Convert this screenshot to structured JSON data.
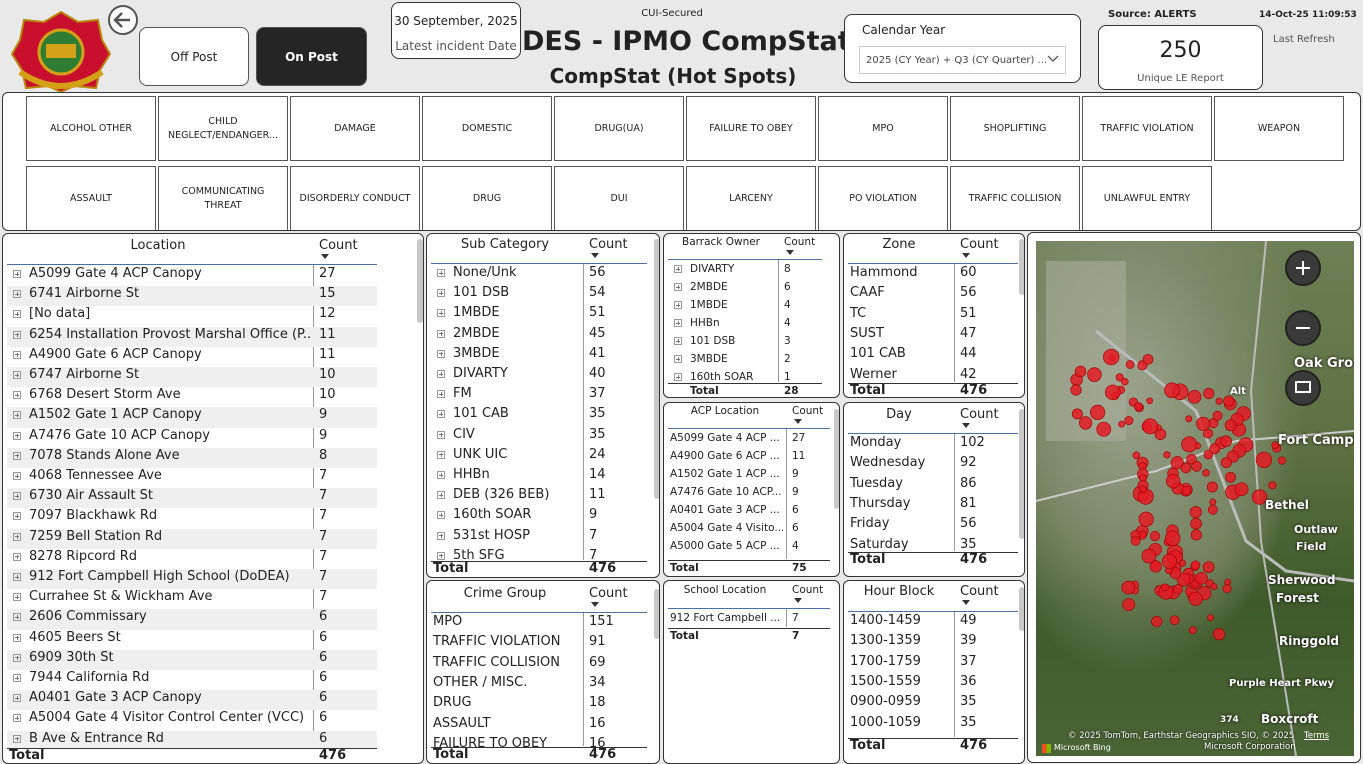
{
  "header": {
    "classification": "CUI-Secured",
    "title": "DES - IPMO CompStat",
    "subtitle": "CompStat (Hot Spots)",
    "latest_date": "30 September, 2025",
    "latest_date_label": "Latest incident Date",
    "filter_label": "Calendar Year",
    "filter_value": "2025 (CY Year) + Q3 (CY Quarter) ...",
    "source": "Source: ALERTS",
    "timestamp": "14-Oct-25 11:09:53",
    "last_refresh": "Last Refresh",
    "card_value": "250",
    "card_label": "Unique LE Report"
  },
  "buttons": [
    "Off Post",
    "On Post"
  ],
  "incident_types": [
    [
      "ALCOHOL OTHER",
      "CHILD NEGLECT/ENDANGER...",
      "DAMAGE",
      "DOMESTIC",
      "DRUG(UA)",
      "FAILURE TO OBEY",
      "MPO",
      "SHOPLIFTING",
      "TRAFFIC VIOLATION",
      "WEAPON"
    ],
    [
      "ASSAULT",
      "COMMUNICATING THREAT",
      "DISORDERLY CONDUCT",
      "DRUG",
      "DUI",
      "LARCENY",
      "PO VIOLATION",
      "TRAFFIC COLLISION",
      "UNLAWFUL ENTRY"
    ]
  ],
  "tables": {
    "location": {
      "columns": [
        "Location",
        "Count"
      ],
      "rows": [
        [
          "A5099 Gate 4 ACP Canopy",
          27
        ],
        [
          "6741 Airborne St",
          15
        ],
        [
          "[No data]",
          12
        ],
        [
          "6254 Installation Provost Marshal Office (P...",
          11
        ],
        [
          "A4900 Gate 6 ACP Canopy",
          11
        ],
        [
          "6747 Airborne St",
          10
        ],
        [
          "6768 Desert Storm Ave",
          10
        ],
        [
          "A1502 Gate 1 ACP Canopy",
          9
        ],
        [
          "A7476 Gate 10 ACP Canopy",
          9
        ],
        [
          "7078 Stands Alone Ave",
          8
        ],
        [
          "4068 Tennessee Ave",
          7
        ],
        [
          "6730 Air Assault St",
          7
        ],
        [
          "7097 Blackhawk Rd",
          7
        ],
        [
          "7259 Bell Station Rd",
          7
        ],
        [
          "8278 Ripcord Rd",
          7
        ],
        [
          "912 Fort Campbell High School (DoDEA)",
          7
        ],
        [
          "Currahee St & Wickham Ave",
          7
        ],
        [
          "2606 Commissary",
          6
        ],
        [
          "4605 Beers St",
          6
        ],
        [
          "6909 30th St",
          6
        ],
        [
          "7944 California Rd",
          6
        ],
        [
          "A0401 Gate 3 ACP Canopy",
          6
        ],
        [
          "A5004 Gate 4 Visitor Control Center (VCC)",
          6
        ],
        [
          "B Ave & Entrance Rd",
          6
        ]
      ],
      "total": [
        "Total",
        476
      ]
    },
    "sub_category": {
      "columns": [
        "Sub Category",
        "Count"
      ],
      "rows": [
        [
          "None/Unk",
          56
        ],
        [
          "101 DSB",
          54
        ],
        [
          "1MBDE",
          51
        ],
        [
          "2MBDE",
          45
        ],
        [
          "3MBDE",
          41
        ],
        [
          "DIVARTY",
          40
        ],
        [
          "FM",
          37
        ],
        [
          "101 CAB",
          35
        ],
        [
          "CIV",
          35
        ],
        [
          "UNK UIC",
          24
        ],
        [
          "HHBn",
          14
        ],
        [
          "DEB (326 BEB)",
          11
        ],
        [
          "160th SOAR",
          9
        ],
        [
          "531st HOSP",
          7
        ],
        [
          "5th SFG",
          7
        ]
      ],
      "total": [
        "Total",
        476
      ]
    },
    "crime_group": {
      "columns": [
        "Crime Group",
        "Count"
      ],
      "rows": [
        [
          "MPO",
          151
        ],
        [
          "TRAFFIC VIOLATION",
          91
        ],
        [
          "TRAFFIC COLLISION",
          69
        ],
        [
          "OTHER / MISC.",
          34
        ],
        [
          "DRUG",
          18
        ],
        [
          "ASSAULT",
          16
        ],
        [
          "FAILURE TO OBEY",
          16
        ]
      ],
      "total": [
        "Total",
        476
      ]
    },
    "barrack_owner": {
      "columns": [
        "Barrack Owner",
        "Count"
      ],
      "rows": [
        [
          "DIVARTY",
          8
        ],
        [
          "2MBDE",
          6
        ],
        [
          "1MBDE",
          4
        ],
        [
          "HHBn",
          4
        ],
        [
          "101 DSB",
          3
        ],
        [
          "3MBDE",
          2
        ],
        [
          "160th SOAR",
          1
        ]
      ],
      "total": [
        "Total",
        28
      ]
    },
    "acp_location": {
      "columns": [
        "ACP Location",
        "Count"
      ],
      "rows": [
        [
          "A5099 Gate 4 ACP ...",
          27
        ],
        [
          "A4900 Gate 6 ACP ...",
          11
        ],
        [
          "A1502 Gate 1 ACP ...",
          9
        ],
        [
          "A7476 Gate 10 ACP...",
          9
        ],
        [
          "A0401 Gate 3 ACP ...",
          6
        ],
        [
          "A5004 Gate 4 Visito...",
          6
        ],
        [
          "A5000 Gate 5 ACP ...",
          4
        ]
      ],
      "total": [
        "Total",
        75
      ]
    },
    "school_location": {
      "columns": [
        "School Location",
        "Count"
      ],
      "rows": [
        [
          "912 Fort Campbell ...",
          7
        ]
      ],
      "total": [
        "Total",
        7
      ]
    },
    "zone": {
      "columns": [
        "Zone",
        "Count"
      ],
      "rows": [
        [
          "Hammond",
          60
        ],
        [
          "CAAF",
          56
        ],
        [
          "TC",
          51
        ],
        [
          "SUST",
          47
        ],
        [
          "101 CAB",
          44
        ],
        [
          "Werner",
          42
        ]
      ],
      "total": [
        "Total",
        476
      ]
    },
    "day": {
      "columns": [
        "Day",
        "Count"
      ],
      "rows": [
        [
          "Monday",
          102
        ],
        [
          "Wednesday",
          92
        ],
        [
          "Tuesday",
          86
        ],
        [
          "Thursday",
          81
        ],
        [
          "Friday",
          56
        ],
        [
          "Saturday",
          35
        ]
      ],
      "total": [
        "Total",
        476
      ]
    },
    "hour_block": {
      "columns": [
        "Hour Block",
        "Count"
      ],
      "rows": [
        [
          "1400-1459",
          49
        ],
        [
          "1300-1359",
          39
        ],
        [
          "1700-1759",
          37
        ],
        [
          "1500-1559",
          36
        ],
        [
          "0900-0959",
          35
        ],
        [
          "1000-1059",
          35
        ]
      ],
      "total": [
        "Total",
        476
      ]
    }
  },
  "map": {
    "labels": [
      "Oak Grov",
      "Alt",
      "Fort Campbell N",
      "Bethel",
      "Outlaw",
      "Field",
      "Sherwood",
      "Forest",
      "Ringgold",
      "Purple Heart Pkwy",
      "Boxcroft",
      "374"
    ],
    "copyright": [
      "© 2025 TomTom, Earthstar Geographics SIO, © 2025",
      "Microsoft Corporation"
    ],
    "terms": "Terms",
    "provider": "Microsoft Bing"
  }
}
